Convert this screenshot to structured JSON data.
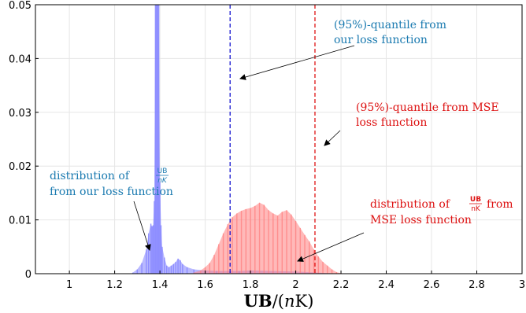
{
  "chart_data": {
    "type": "bar",
    "xlabel": "UB/(nK)",
    "xlabel_parts": {
      "bold": "UB",
      "rest_open": "/(",
      "italic": "n",
      "rest_close": "K)"
    },
    "xlim": [
      0.85,
      3.0
    ],
    "ylim": [
      0,
      0.05
    ],
    "xticks": [
      "1",
      "1.2",
      "1.4",
      "1.6",
      "1.8",
      "2",
      "2.2",
      "2.4",
      "2.6",
      "2.8",
      "3"
    ],
    "yticks": [
      "0",
      "0.01",
      "0.02",
      "0.03",
      "0.04",
      "0.05"
    ],
    "grid": true,
    "bin_width": 0.005,
    "series": [
      {
        "color": "#8080ff",
        "x": [
          1.28,
          1.3,
          1.32,
          1.34,
          1.35,
          1.36,
          1.365,
          1.37,
          1.375,
          1.38,
          1.385,
          1.39,
          1.395,
          1.4,
          1.405,
          1.41,
          1.42,
          1.43,
          1.44,
          1.45,
          1.46,
          1.47,
          1.48,
          1.49,
          1.5,
          1.52,
          1.55,
          1.6,
          1.65,
          1.7,
          1.75,
          1.8,
          1.9,
          2.0,
          2.1,
          2.15
        ],
        "values": [
          0.0002,
          0.0008,
          0.002,
          0.0045,
          0.0075,
          0.0093,
          0.0088,
          0.009,
          0.0135,
          0.05,
          0.05,
          0.05,
          0.05,
          0.017,
          0.009,
          0.005,
          0.003,
          0.0015,
          0.0012,
          0.0015,
          0.0018,
          0.0022,
          0.0028,
          0.0025,
          0.0018,
          0.0012,
          0.0008,
          0.0006,
          0.0005,
          0.0005,
          0.0005,
          0.0006,
          0.0005,
          0.0004,
          0.0002,
          0.0001
        ]
      },
      {
        "color": "#ff8080",
        "x": [
          1.55,
          1.58,
          1.6,
          1.62,
          1.64,
          1.66,
          1.68,
          1.7,
          1.72,
          1.74,
          1.76,
          1.78,
          1.8,
          1.82,
          1.84,
          1.86,
          1.88,
          1.9,
          1.92,
          1.94,
          1.96,
          1.98,
          2.0,
          2.02,
          2.04,
          2.06,
          2.08,
          2.1,
          2.12,
          2.14,
          2.16,
          2.18,
          2.2
        ],
        "values": [
          0.0002,
          0.0006,
          0.0012,
          0.002,
          0.0035,
          0.0055,
          0.0075,
          0.0092,
          0.0105,
          0.0112,
          0.0117,
          0.012,
          0.0122,
          0.0126,
          0.0132,
          0.0128,
          0.0118,
          0.0112,
          0.0108,
          0.0115,
          0.0118,
          0.011,
          0.0098,
          0.0085,
          0.0072,
          0.006,
          0.0045,
          0.0032,
          0.0022,
          0.0015,
          0.0008,
          0.0003,
          0.0001
        ]
      }
    ],
    "vlines": [
      {
        "x": 1.71,
        "color": "#0000cc"
      },
      {
        "x": 2.085,
        "color": "#dd0000"
      }
    ],
    "annotations": [
      {
        "line1": "(95%)-quantile from",
        "line2": "our loss function",
        "color": "#1a7ab0"
      },
      {
        "line1": "(95%)-quantile from MSE",
        "line2": "loss function",
        "color": "#dd1111"
      },
      {
        "line1_pre": "distribution of",
        "frac_num": "UB",
        "frac_den": "nK",
        "line2": "from our loss function",
        "color": "#1a7ab0"
      },
      {
        "line1_pre": "distribution of",
        "frac_num": "UB",
        "frac_den": "nK",
        "line1_post": "from",
        "line2": "MSE loss function",
        "color": "#dd1111"
      }
    ]
  },
  "colors": {
    "axis": "#000000",
    "grid": "#e6e6e6",
    "arrow": "#000000"
  }
}
